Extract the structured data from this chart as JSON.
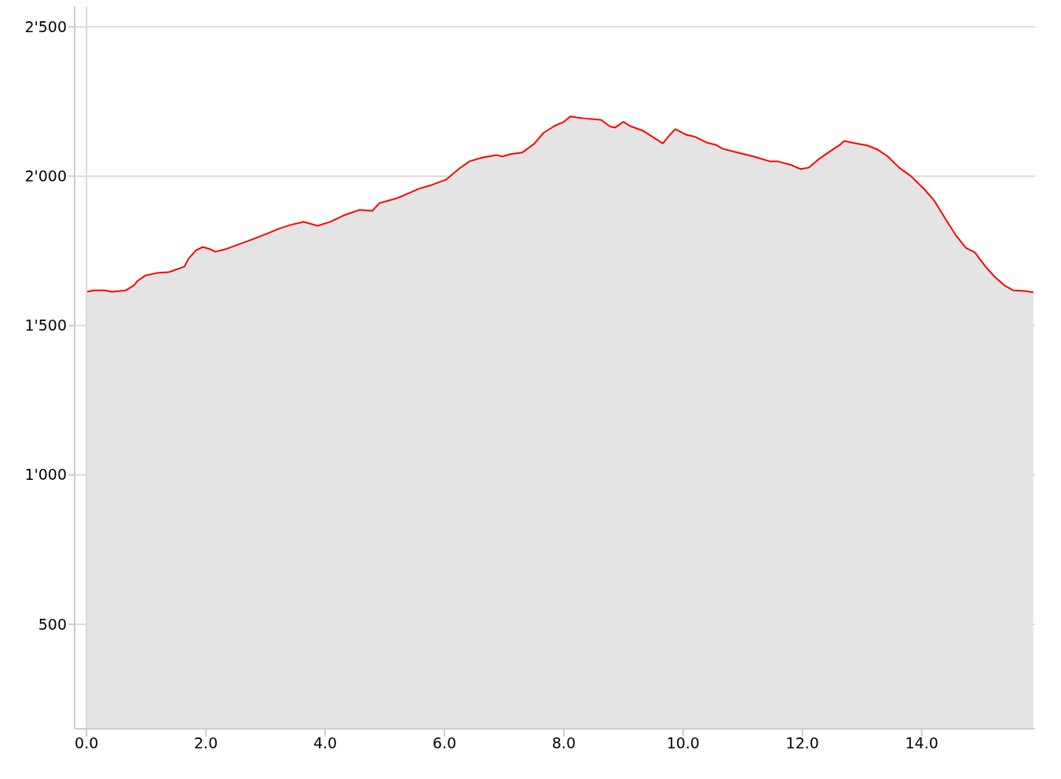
{
  "chart_data": {
    "type": "area",
    "x": [
      0,
      0.13,
      0.3,
      0.43,
      0.66,
      0.79,
      0.86,
      0.99,
      1.18,
      1.38,
      1.64,
      1.71,
      1.84,
      1.95,
      2.08,
      2.16,
      2.32,
      2.5,
      2.76,
      3.03,
      3.22,
      3.42,
      3.64,
      3.87,
      4.08,
      4.34,
      4.57,
      4.79,
      4.91,
      5.2,
      5.39,
      5.57,
      5.79,
      6.03,
      6.25,
      6.42,
      6.64,
      6.87,
      6.97,
      7.11,
      7.3,
      7.5,
      7.66,
      7.84,
      8.0,
      8.11,
      8.21,
      8.42,
      8.62,
      8.78,
      8.86,
      9.0,
      9.11,
      9.32,
      9.47,
      9.66,
      9.76,
      9.87,
      10.05,
      10.2,
      10.39,
      10.55,
      10.66,
      10.86,
      11.18,
      11.45,
      11.58,
      11.82,
      11.97,
      12.11,
      12.28,
      12.43,
      12.63,
      12.7,
      12.89,
      13.09,
      13.26,
      13.42,
      13.62,
      13.82,
      14.05,
      14.21,
      14.41,
      14.58,
      14.74,
      14.89,
      15.07,
      15.24,
      15.39,
      15.53,
      15.72,
      15.87
    ],
    "series": [
      {
        "color": "#ff0000",
        "values": [
          1613,
          1618,
          1618,
          1613,
          1618,
          1634,
          1650,
          1668,
          1676,
          1679,
          1697,
          1724,
          1753,
          1763,
          1755,
          1747,
          1755,
          1768,
          1787,
          1808,
          1824,
          1837,
          1847,
          1834,
          1847,
          1871,
          1887,
          1884,
          1910,
          1926,
          1942,
          1958,
          1971,
          1989,
          2026,
          2050,
          2063,
          2071,
          2066,
          2074,
          2079,
          2108,
          2145,
          2168,
          2182,
          2200,
          2197,
          2192,
          2189,
          2166,
          2163,
          2182,
          2168,
          2153,
          2134,
          2110,
          2134,
          2158,
          2139,
          2132,
          2113,
          2105,
          2092,
          2082,
          2066,
          2050,
          2050,
          2037,
          2024,
          2029,
          2058,
          2079,
          2105,
          2118,
          2110,
          2103,
          2089,
          2068,
          2029,
          2000,
          1955,
          1918,
          1853,
          1800,
          1760,
          1745,
          1697,
          1660,
          1634,
          1618,
          1616,
          1611
        ]
      }
    ],
    "xlim": [
      -0.2,
      15.9
    ],
    "xticks": [
      {
        "value": 0,
        "label": "0.0"
      },
      {
        "value": 2,
        "label": "2.0"
      },
      {
        "value": 4,
        "label": "4.0"
      },
      {
        "value": 6,
        "label": "6.0"
      },
      {
        "value": 8,
        "label": "8.0"
      },
      {
        "value": 10,
        "label": "10.0"
      },
      {
        "value": 12,
        "label": "12.0"
      },
      {
        "value": 14,
        "label": "14.0"
      }
    ],
    "ylim": [
      150,
      2590
    ],
    "yticks": [
      500,
      {
        "value": 1000,
        "label": "1'000"
      },
      {
        "value": 1500,
        "label": "1'500"
      },
      {
        "value": 2000,
        "label": "2'000"
      },
      {
        "value": 2500,
        "label": "2'500"
      }
    ],
    "grid": "y",
    "ref_lines": [
      {
        "axis": "x",
        "value": 0,
        "color": "#d9d9d9"
      }
    ],
    "legend": false
  }
}
